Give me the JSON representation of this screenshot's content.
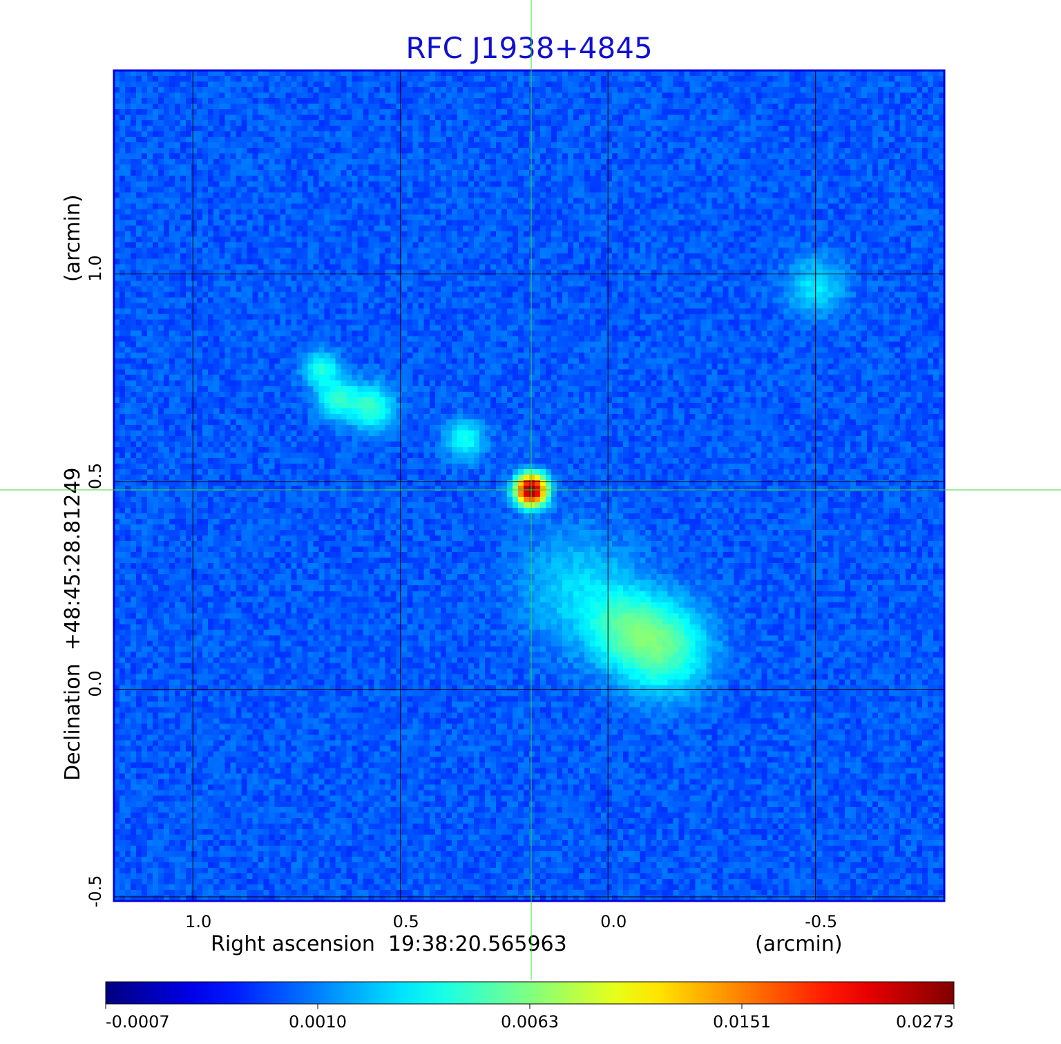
{
  "chart_data": {
    "type": "heatmap",
    "title": "RFC J1938+4845",
    "xlabel": "Right ascension  19:38:20.565963",
    "xunit": "(arcmin)",
    "ylabel": "Declination  +48:45:28.81249",
    "yunit": "(arcmin)",
    "xlim": [
      1.19,
      -0.81
    ],
    "ylim": [
      -0.51,
      1.49
    ],
    "grid": true,
    "x_ticks": [
      {
        "value": 1.0,
        "label": "1.0"
      },
      {
        "value": 0.5,
        "label": "0.5"
      },
      {
        "value": 0.0,
        "label": "0.0"
      },
      {
        "value": -0.5,
        "label": "-0.5"
      }
    ],
    "y_ticks": [
      {
        "value": 1.0,
        "label": "1.0"
      },
      {
        "value": 0.5,
        "label": "0.5"
      },
      {
        "value": 0.0,
        "label": "0.0"
      },
      {
        "value": -0.5,
        "label": "-0.5"
      }
    ],
    "crosshair": {
      "x": 0.185,
      "y": 0.48
    },
    "colormap": "jet",
    "colorbar": {
      "tick_labels": [
        "-0.0007",
        "0.0010",
        "0.0063",
        "0.0151",
        "0.0273"
      ]
    },
    "intensity_range": [
      -0.0007,
      0.0273
    ],
    "background_level": 0.0002,
    "components": [
      {
        "x": 0.185,
        "y": 0.48,
        "peak": 0.0273,
        "sigma": 0.022
      },
      {
        "x": -0.13,
        "y": 0.1,
        "peak": 0.0042,
        "sigma": 0.07
      },
      {
        "x": -0.04,
        "y": 0.15,
        "peak": 0.0028,
        "sigma": 0.06
      },
      {
        "x": 0.07,
        "y": 0.24,
        "peak": 0.0016,
        "sigma": 0.09
      },
      {
        "x": 0.57,
        "y": 0.68,
        "peak": 0.0033,
        "sigma": 0.035
      },
      {
        "x": 0.65,
        "y": 0.7,
        "peak": 0.003,
        "sigma": 0.032
      },
      {
        "x": 0.69,
        "y": 0.77,
        "peak": 0.0028,
        "sigma": 0.028
      },
      {
        "x": 0.345,
        "y": 0.6,
        "peak": 0.0027,
        "sigma": 0.03
      },
      {
        "x": -0.5,
        "y": 0.97,
        "peak": 0.0019,
        "sigma": 0.045
      }
    ]
  },
  "colors": {
    "title": "#1010d0",
    "frame": "#0000dd",
    "grid": "#000000",
    "crosshair": "#33dd33",
    "text": "#000000"
  }
}
